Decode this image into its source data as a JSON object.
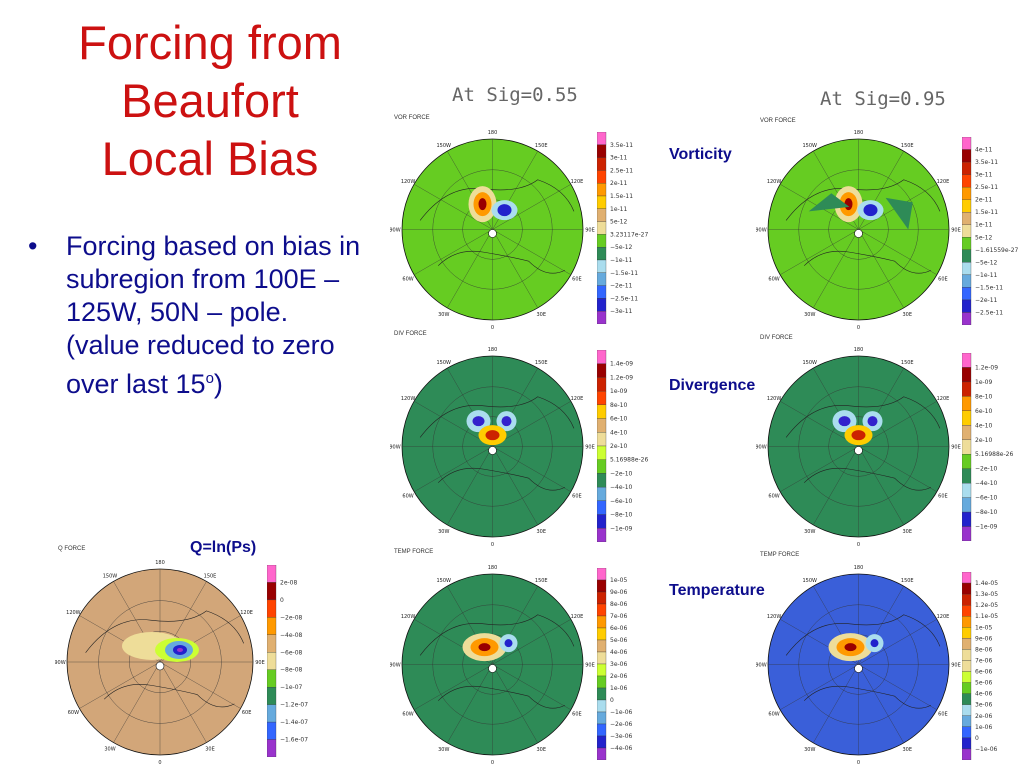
{
  "title": {
    "line1": "Forcing from",
    "line2": "Beaufort",
    "line3": "Local Bias"
  },
  "bullet": {
    "marker": "•",
    "text": "Forcing based on bias in subregion from 100E – 125W, 50N – pole. (value reduced to zero over last 15",
    "sup": "o",
    "after": ")"
  },
  "sig_left": "At Sig=0.55",
  "sig_right": "At Sig=0.95",
  "labels": {
    "vorticity": "Vorticity",
    "divergence": "Divergence",
    "temperature": "Temperature",
    "q": "Q=ln(Ps)"
  },
  "captions": {
    "vor": "VOR FORCE",
    "div": "DIV FORCE",
    "temp": "TEMP FORCE",
    "q": "Q FORCE"
  },
  "longitudes": [
    "180",
    "150E",
    "120E",
    "90E",
    "60E",
    "30E",
    "0",
    "30W",
    "60W",
    "90W",
    "120W",
    "150W"
  ],
  "colorbars": {
    "vor_l": [
      "3.5e-11",
      "3e-11",
      "2.5e-11",
      "2e-11",
      "1.5e-11",
      "1e-11",
      "5e-12",
      "3.23117e-27",
      "−5e-12",
      "−1e-11",
      "−1.5e-11",
      "−2e-11",
      "−2.5e-11",
      "−3e-11"
    ],
    "vor_r": [
      "4e-11",
      "3.5e-11",
      "3e-11",
      "2.5e-11",
      "2e-11",
      "1.5e-11",
      "1e-11",
      "5e-12",
      "−1.61559e-27",
      "−5e-12",
      "−1e-11",
      "−1.5e-11",
      "−2e-11",
      "−2.5e-11"
    ],
    "div_l": [
      "1.4e-09",
      "1.2e-09",
      "1e-09",
      "8e-10",
      "6e-10",
      "4e-10",
      "2e-10",
      "5.16988e-26",
      "−2e-10",
      "−4e-10",
      "−6e-10",
      "−8e-10",
      "−1e-09"
    ],
    "div_r": [
      "1.2e-09",
      "1e-09",
      "8e-10",
      "6e-10",
      "4e-10",
      "2e-10",
      "5.16988e-26",
      "−2e-10",
      "−4e-10",
      "−6e-10",
      "−8e-10",
      "−1e-09"
    ],
    "temp_l": [
      "1e-05",
      "9e-06",
      "8e-06",
      "7e-06",
      "6e-06",
      "5e-06",
      "4e-06",
      "3e-06",
      "2e-06",
      "1e-06",
      "0",
      "−1e-06",
      "−2e-06",
      "−3e-06",
      "−4e-06"
    ],
    "temp_r": [
      "1.4e-05",
      "1.3e-05",
      "1.2e-05",
      "1.1e-05",
      "1e-05",
      "9e-06",
      "8e-06",
      "7e-06",
      "6e-06",
      "5e-06",
      "4e-06",
      "3e-06",
      "2e-06",
      "1e-06",
      "0",
      "−1e-06"
    ],
    "q": [
      "2e-08",
      "0",
      "−2e-08",
      "−4e-08",
      "−6e-08",
      "−8e-08",
      "−1e-07",
      "−1.2e-07",
      "−1.4e-07",
      "−1.6e-07"
    ]
  },
  "colors": {
    "title": "#cc1111",
    "text": "#0d0d8c",
    "vor_bg": "#66cc22",
    "div_bg": "#2e8b57",
    "temp_l_bg": "#2e8b57",
    "temp_r_bg": "#3a5fd9",
    "q_bg": "#d2a679"
  }
}
